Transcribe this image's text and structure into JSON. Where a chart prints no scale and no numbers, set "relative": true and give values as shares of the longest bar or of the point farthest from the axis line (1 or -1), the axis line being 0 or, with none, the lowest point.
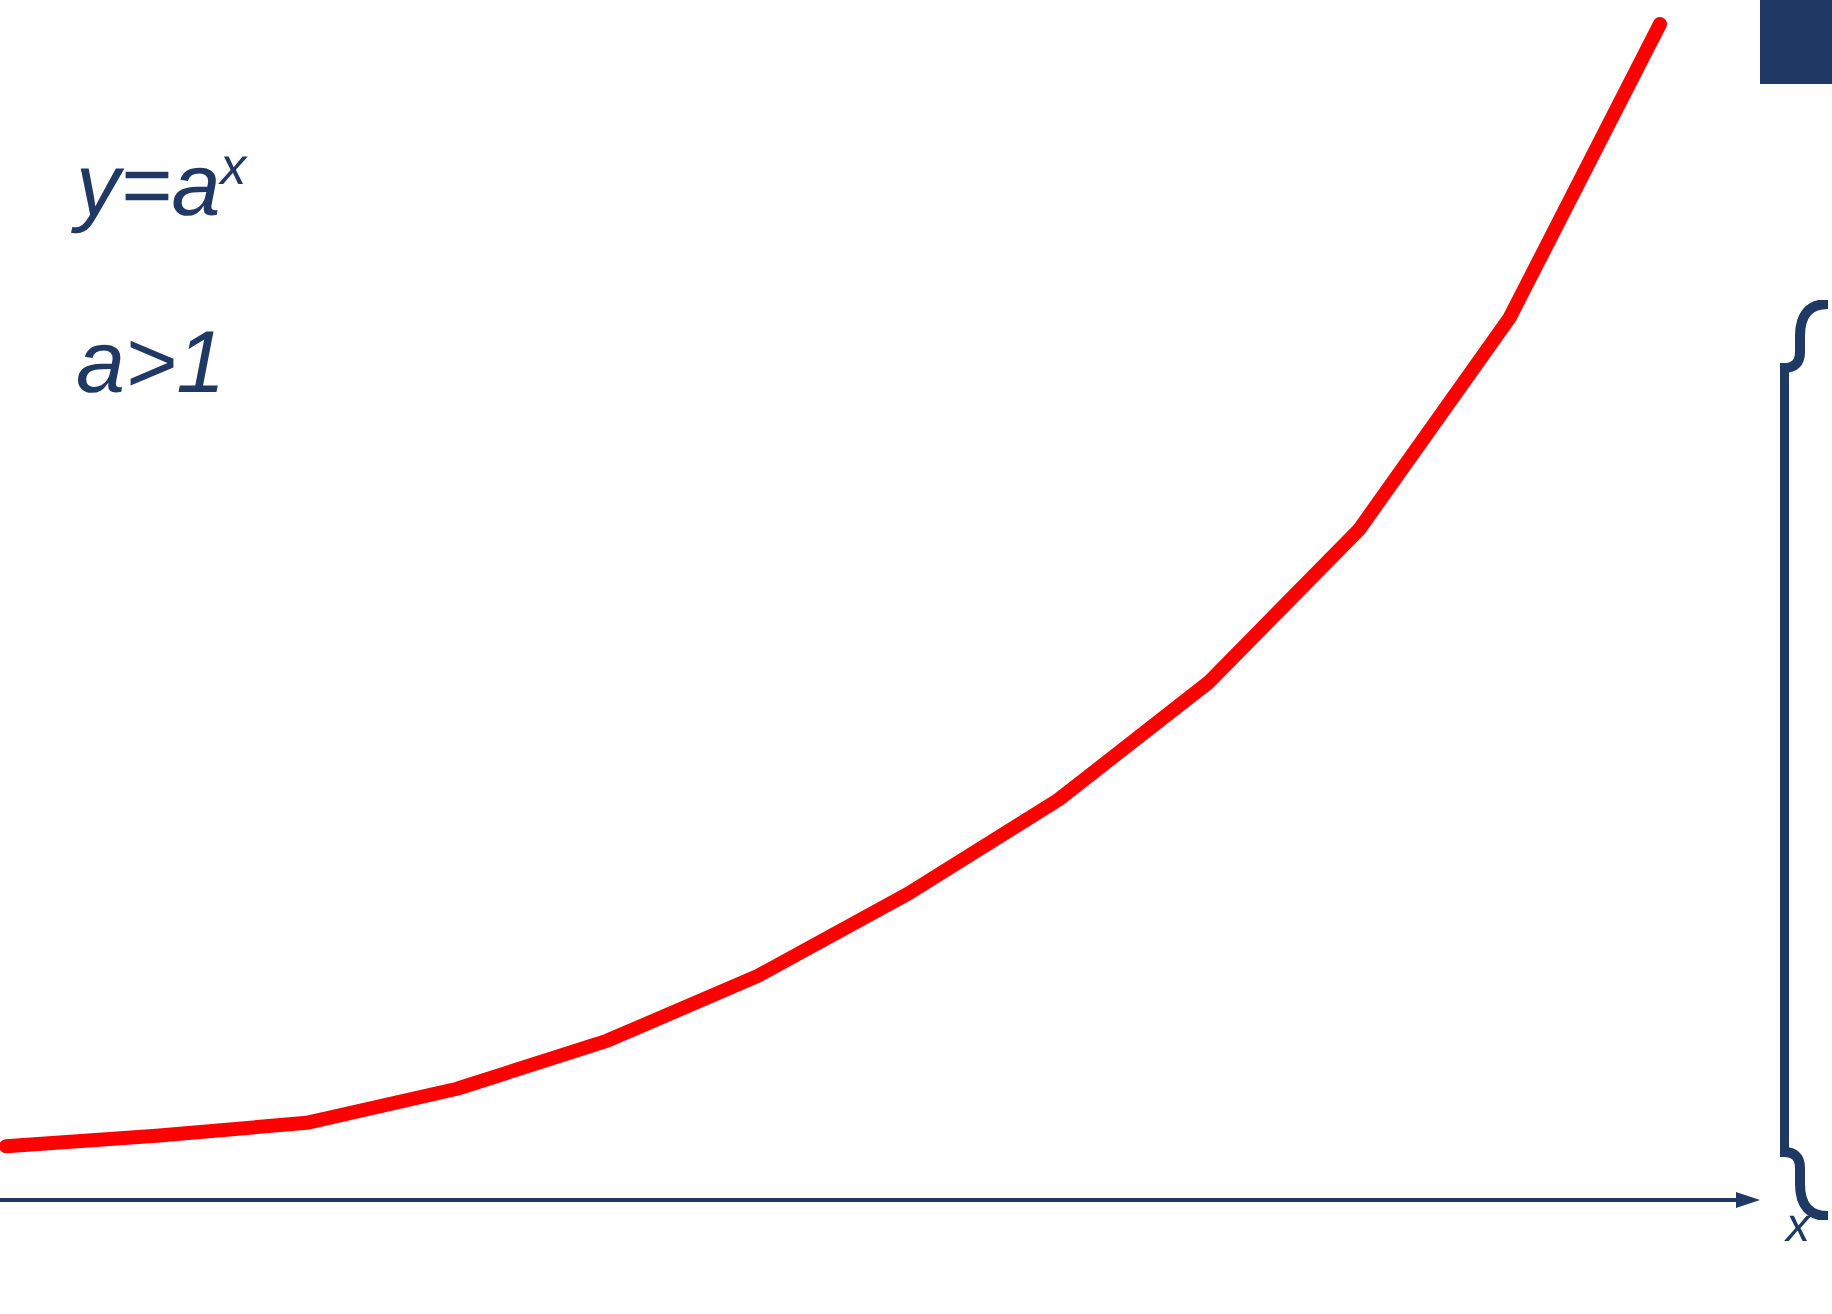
{
  "chart_data": {
    "type": "line",
    "relative": true,
    "xlabel": "x",
    "annotations": [
      "y=a$^{x}$",
      "a>1"
    ],
    "categories": [
      null,
      null,
      null,
      null,
      null,
      null,
      null,
      null,
      null,
      null,
      null,
      null
    ],
    "series": [
      {
        "color": "#ff0000",
        "values": [
          0.045,
          0.054,
          0.065,
          0.094,
          0.135,
          0.19,
          0.26,
          0.34,
          0.44,
          0.57,
          0.75,
          1
        ]
      }
    ],
    "marker": "none",
    "line_style": "solid",
    "legend": false
  }
}
